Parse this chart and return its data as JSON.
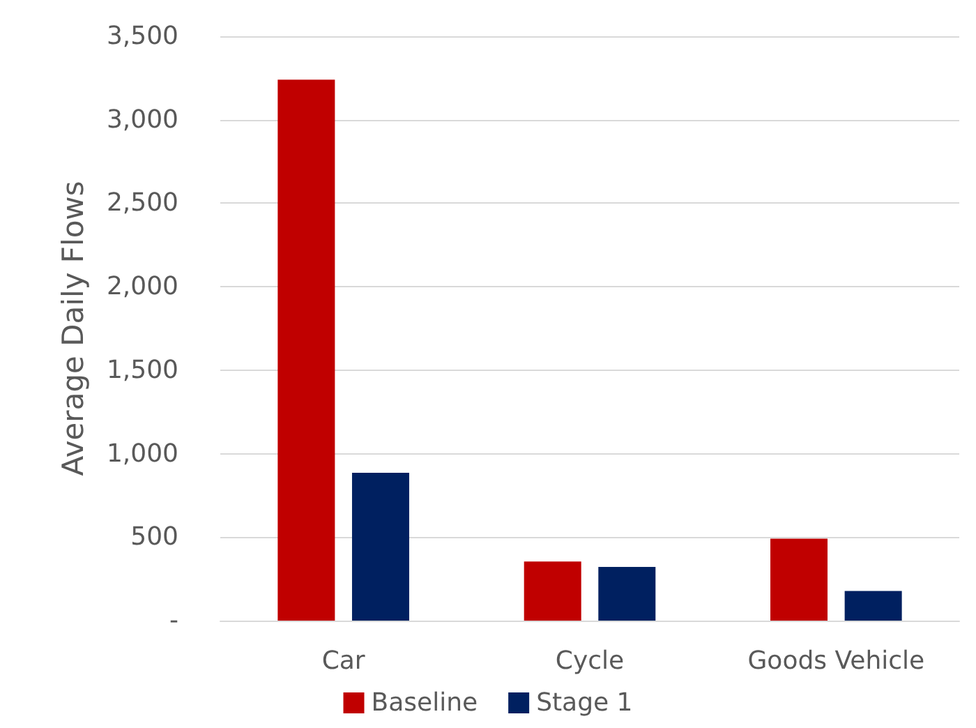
{
  "chart_data": {
    "type": "bar",
    "ylabel": "Average Daily Flows",
    "categories": [
      "Car",
      "Cycle",
      "Goods Vehicle"
    ],
    "series": [
      {
        "name": "Baseline",
        "color": "#c00000",
        "values": [
          3240,
          354,
          491
        ]
      },
      {
        "name": "Stage 1",
        "color": "#002060",
        "values": [
          885,
          322,
          177
        ]
      }
    ],
    "ylim": [
      0,
      3500
    ],
    "yticks": [
      {
        "value": 0,
        "label": "-"
      },
      {
        "value": 500,
        "label": "500"
      },
      {
        "value": 1000,
        "label": "1,000"
      },
      {
        "value": 1500,
        "label": "1,500"
      },
      {
        "value": 2000,
        "label": "2,000"
      },
      {
        "value": 2500,
        "label": "2,500"
      },
      {
        "value": 3000,
        "label": "3,000"
      },
      {
        "value": 3500,
        "label": "3,500"
      }
    ],
    "grid": "y",
    "legend": "bottom"
  }
}
